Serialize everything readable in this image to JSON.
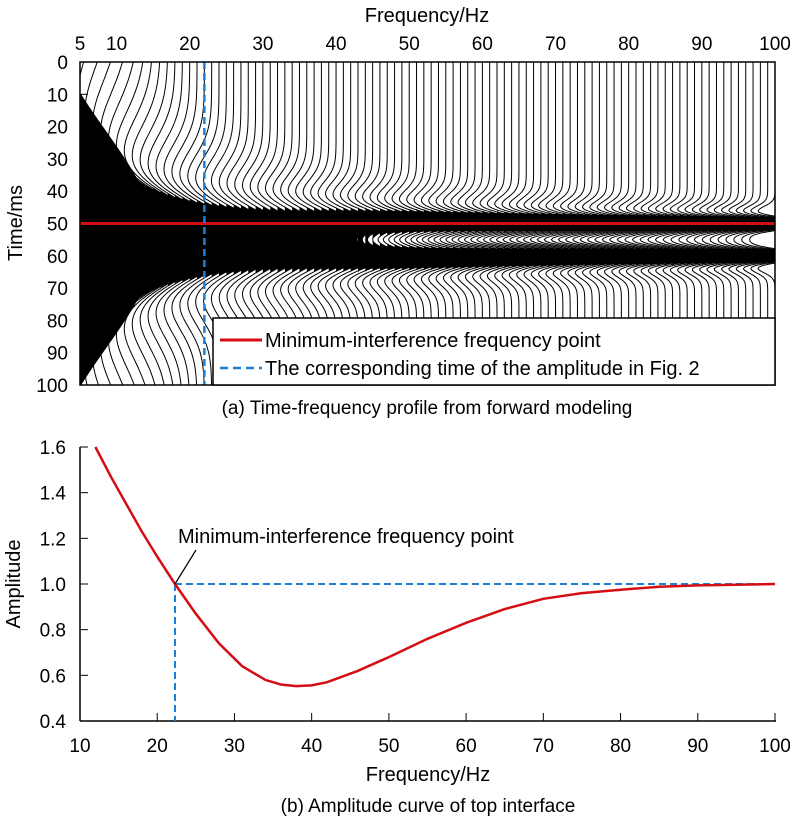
{
  "colors": {
    "red": "#d40e14",
    "blue": "#1a7fd6",
    "black": "#000000"
  },
  "chart_data": [
    {
      "type": "wiggle-profile",
      "title": "(a) Time-frequency profile from forward modeling",
      "xlabel": "Frequency/Hz",
      "ylabel": "Time/ms",
      "xlim": [
        5,
        100
      ],
      "ylim": [
        0,
        100
      ],
      "xticks": [
        "5",
        "10",
        "20",
        "30",
        "40",
        "50",
        "60",
        "70",
        "80",
        "90",
        "100"
      ],
      "xtick_values": [
        5,
        10,
        20,
        30,
        40,
        50,
        60,
        70,
        80,
        90,
        100
      ],
      "yticks": [
        "0",
        "10",
        "20",
        "30",
        "40",
        "50",
        "60",
        "70",
        "80",
        "90",
        "100"
      ],
      "ytick_values": [
        0,
        10,
        20,
        30,
        40,
        50,
        60,
        70,
        80,
        90,
        100
      ],
      "trace_frequencies": {
        "start": 5,
        "end": 100,
        "step": 1
      },
      "reflection_times_ms": [
        50,
        60
      ],
      "hline_time_ms": 50,
      "vline_frequency_hz": 22,
      "legend": {
        "placement": "bottom-right",
        "entries": [
          {
            "label": "Minimum-interference frequency point",
            "style": "solid",
            "color": "#d40e14"
          },
          {
            "label": "The corresponding time of the amplitude in Fig. 2",
            "style": "dashed",
            "color": "#1a7fd6"
          }
        ]
      }
    },
    {
      "type": "line",
      "title": "(b) Amplitude curve of top interface",
      "xlabel": "Frequency/Hz",
      "ylabel": "Amplitude",
      "xlim": [
        10,
        100
      ],
      "ylim": [
        0.4,
        1.6
      ],
      "xticks": [
        "10",
        "20",
        "30",
        "40",
        "50",
        "60",
        "70",
        "80",
        "90",
        "100"
      ],
      "xtick_values": [
        10,
        20,
        30,
        40,
        50,
        60,
        70,
        80,
        90,
        100
      ],
      "yticks": [
        "0.4",
        "0.6",
        "0.8",
        "1.0",
        "1.2",
        "1.4",
        "1.6"
      ],
      "ytick_values": [
        0.4,
        0.6,
        0.8,
        1.0,
        1.2,
        1.4,
        1.6
      ],
      "series": [
        {
          "name": "Amplitude",
          "color": "#d40e14",
          "x": [
            12,
            14,
            16,
            18,
            20,
            22.3,
            25,
            28,
            31,
            34,
            36,
            38,
            40,
            42,
            46,
            50,
            55,
            60,
            65,
            70,
            75,
            80,
            85,
            90,
            95,
            100
          ],
          "y": [
            1.6,
            1.47,
            1.35,
            1.23,
            1.12,
            1.0,
            0.87,
            0.74,
            0.64,
            0.58,
            0.56,
            0.553,
            0.556,
            0.57,
            0.62,
            0.68,
            0.76,
            0.83,
            0.89,
            0.935,
            0.96,
            0.975,
            0.988,
            0.994,
            0.997,
            1.0
          ]
        }
      ],
      "reference_point": {
        "x": 22.3,
        "y": 1.0
      },
      "annotation": "Minimum-interference frequency point"
    }
  ]
}
